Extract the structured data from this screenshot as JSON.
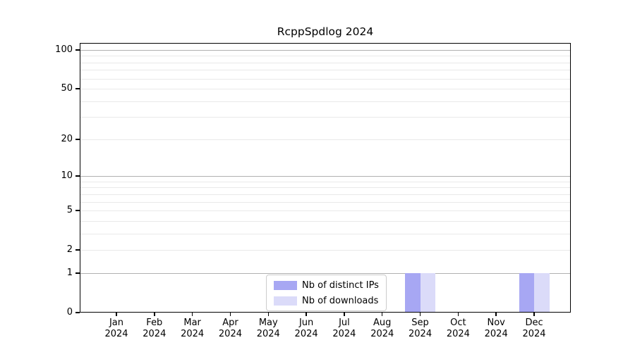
{
  "chart_data": {
    "type": "bar",
    "title": "RcppSpdlog 2024",
    "categories": [
      "Jan 2024",
      "Feb 2024",
      "Mar 2024",
      "Apr 2024",
      "May 2024",
      "Jun 2024",
      "Jul 2024",
      "Aug 2024",
      "Sep 2024",
      "Oct 2024",
      "Nov 2024",
      "Dec 2024"
    ],
    "series": [
      {
        "name": "Nb of distinct IPs",
        "color": "#a7a7f3",
        "values": [
          0,
          0,
          0,
          0,
          0,
          0,
          0,
          0,
          1,
          0,
          0,
          1
        ]
      },
      {
        "name": "Nb of downloads",
        "color": "#dbdbf9",
        "values": [
          0,
          0,
          0,
          0,
          0,
          0,
          0,
          0,
          1,
          0,
          0,
          1
        ]
      }
    ],
    "y_scale": "log1p",
    "ylim": [
      0,
      113
    ],
    "y_tick_values": [
      100,
      50,
      20,
      10,
      5,
      2,
      1,
      0
    ],
    "y_major_gridlines": [
      1,
      10,
      100
    ],
    "y_minor_gridlines": [
      2,
      3,
      4,
      5,
      6,
      7,
      8,
      9,
      20,
      30,
      40,
      50,
      60,
      70,
      80,
      90
    ],
    "grid": true,
    "legend_position": "lower center",
    "xlabel": "",
    "ylabel": ""
  },
  "colors": {
    "grid_major": "#b0b0b0",
    "grid_minor": "#e9e9e9",
    "axis": "#000000",
    "background": "#ffffff",
    "legend_border": "#cccccc"
  }
}
